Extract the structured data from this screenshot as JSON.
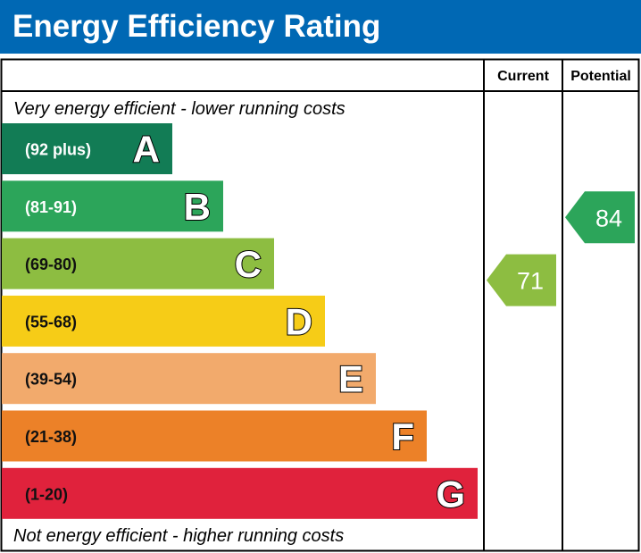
{
  "title": "Energy Efficiency Rating",
  "chart_data": {
    "type": "bar",
    "columns": {
      "current": "Current",
      "potential": "Potential"
    },
    "top_note": "Very energy efficient - lower running costs",
    "bottom_note": "Not energy efficient - higher running costs",
    "bands": [
      {
        "letter": "A",
        "range": "(92 plus)",
        "color": "#127c55",
        "text_color": "#ffffff"
      },
      {
        "letter": "B",
        "range": "(81-91)",
        "color": "#2ca55a",
        "text_color": "#ffffff"
      },
      {
        "letter": "C",
        "range": "(69-80)",
        "color": "#8dbd41",
        "text_color": "#111111"
      },
      {
        "letter": "D",
        "range": "(55-68)",
        "color": "#f6cc17",
        "text_color": "#111111"
      },
      {
        "letter": "E",
        "range": "(39-54)",
        "color": "#f2aa6c",
        "text_color": "#111111"
      },
      {
        "letter": "F",
        "range": "(21-38)",
        "color": "#ec8128",
        "text_color": "#111111"
      },
      {
        "letter": "G",
        "range": "(1-20)",
        "color": "#e0223c",
        "text_color": "#111111"
      }
    ],
    "current": {
      "value": "71",
      "band": "C"
    },
    "potential": {
      "value": "84",
      "band": "B"
    }
  }
}
